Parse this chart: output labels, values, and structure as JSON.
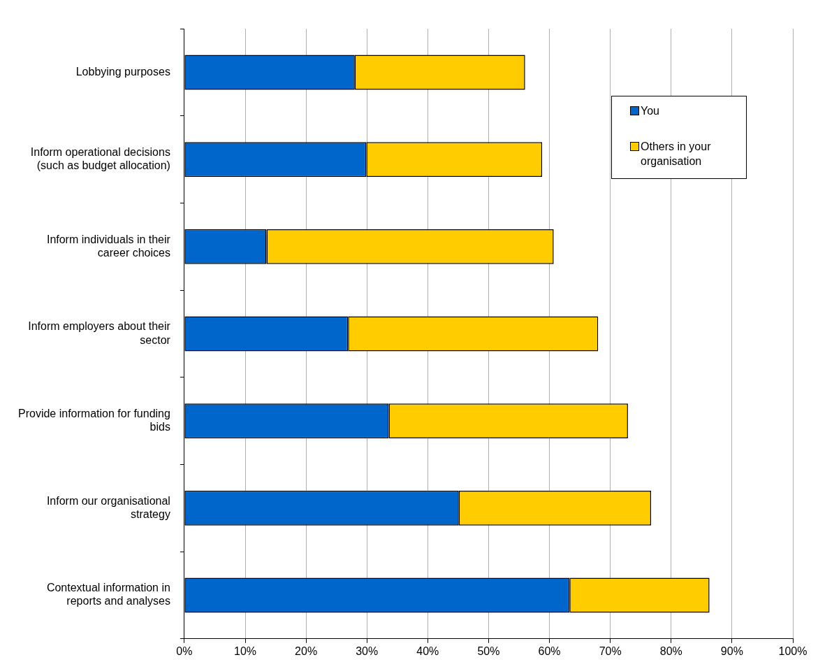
{
  "chart_data": {
    "type": "bar",
    "orientation": "horizontal",
    "stacked": true,
    "categories": [
      "Lobbying purposes",
      "Inform operational decisions (such as budget allocation)",
      "Inform individuals in their career choices",
      "Inform employers about their sector",
      "Provide information for funding bids",
      "Inform our organisational strategy",
      "Contextual information in reports and analyses"
    ],
    "series": [
      {
        "name": "You",
        "color": "#0066cc",
        "values": [
          28.0,
          29.9,
          13.5,
          26.9,
          33.6,
          45.1,
          63.3
        ]
      },
      {
        "name": "Others in your organisation",
        "color": "#ffcc00",
        "values": [
          28.0,
          28.9,
          47.2,
          41.1,
          39.3,
          31.6,
          23.0
        ]
      }
    ],
    "xlim": [
      0,
      100
    ],
    "xticks": [
      {
        "value": 0,
        "label": "0%"
      },
      {
        "value": 10,
        "label": "10%"
      },
      {
        "value": 20,
        "label": "20%"
      },
      {
        "value": 30,
        "label": "30%"
      },
      {
        "value": 40,
        "label": "40%"
      },
      {
        "value": 50,
        "label": "50%"
      },
      {
        "value": 60,
        "label": "60%"
      },
      {
        "value": 70,
        "label": "70%"
      },
      {
        "value": 80,
        "label": "80%"
      },
      {
        "value": 90,
        "label": "90%"
      },
      {
        "value": 100,
        "label": "100%"
      }
    ],
    "grid": "x",
    "legend": "top right"
  }
}
